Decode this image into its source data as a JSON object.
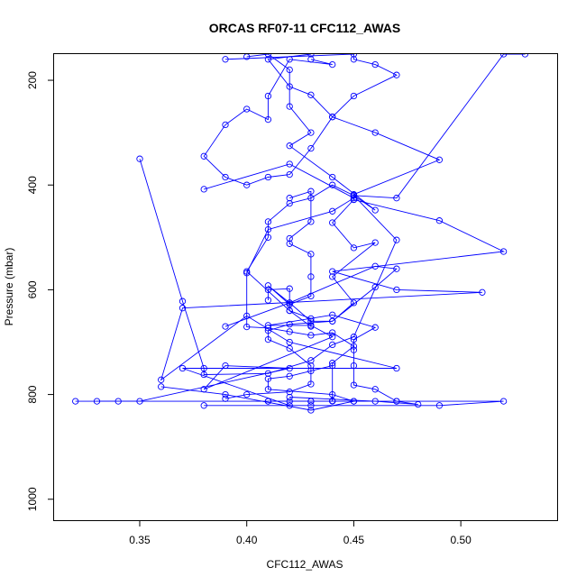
{
  "chart_data": {
    "type": "line",
    "title": "ORCAS RF07-11 CFC112_AWAS",
    "xlabel": "CFC112_AWAS",
    "ylabel": "Pressure (mbar)",
    "xlim": [
      0.31,
      0.545
    ],
    "ylim": [
      1040,
      150
    ],
    "y_reversed": true,
    "x_ticks": [
      0.35,
      0.4,
      0.45,
      0.5
    ],
    "x_tick_labels": [
      "0.35",
      "0.40",
      "0.45",
      "0.50"
    ],
    "y_ticks": [
      200,
      400,
      600,
      800,
      1000
    ],
    "y_tick_labels": [
      "200",
      "400",
      "600",
      "800",
      "1000"
    ],
    "series_color": "#0000ff",
    "marker": "open-circle",
    "series": [
      {
        "points": [
          [
            0.32,
            813
          ],
          [
            0.41,
            813
          ],
          [
            0.43,
            813
          ],
          [
            0.45,
            813
          ],
          [
            0.47,
            813
          ],
          [
            0.52,
            813
          ],
          [
            0.49,
            821
          ],
          [
            0.43,
            821
          ],
          [
            0.38,
            821
          ],
          [
            0.42,
            821
          ],
          [
            0.37,
            750
          ],
          [
            0.47,
            750
          ],
          [
            0.42,
            700
          ],
          [
            0.4,
            650
          ],
          [
            0.36,
            772
          ],
          [
            0.37,
            635
          ],
          [
            0.51,
            605
          ],
          [
            0.47,
            600
          ],
          [
            0.44,
            565
          ],
          [
            0.52,
            527
          ],
          [
            0.49,
            468
          ],
          [
            0.45,
            428
          ],
          [
            0.45,
            418
          ],
          [
            0.49,
            352
          ],
          [
            0.46,
            300
          ],
          [
            0.44,
            270
          ],
          [
            0.43,
            228
          ],
          [
            0.42,
            212
          ],
          [
            0.41,
            160
          ],
          [
            0.43,
            150
          ]
        ]
      },
      {
        "points": [
          [
            0.33,
            813
          ],
          [
            0.34,
            813
          ],
          [
            0.35,
            813
          ],
          [
            0.42,
            750
          ],
          [
            0.39,
            745
          ],
          [
            0.38,
            790
          ],
          [
            0.44,
            690
          ],
          [
            0.43,
            668
          ],
          [
            0.41,
            668
          ],
          [
            0.44,
            648
          ],
          [
            0.46,
            672
          ],
          [
            0.45,
            695
          ],
          [
            0.45,
            715
          ],
          [
            0.45,
            745
          ],
          [
            0.45,
            782
          ],
          [
            0.46,
            790
          ],
          [
            0.47,
            813
          ],
          [
            0.48,
            819
          ],
          [
            0.46,
            813
          ],
          [
            0.42,
            805
          ]
        ]
      },
      {
        "points": [
          [
            0.35,
            350
          ],
          [
            0.37,
            622
          ],
          [
            0.38,
            750
          ],
          [
            0.38,
            762
          ],
          [
            0.41,
            760
          ],
          [
            0.43,
            735
          ],
          [
            0.44,
            705
          ],
          [
            0.45,
            690
          ],
          [
            0.47,
            505
          ],
          [
            0.45,
            420
          ],
          [
            0.46,
            448
          ],
          [
            0.44,
            385
          ],
          [
            0.42,
            325
          ],
          [
            0.43,
            300
          ],
          [
            0.42,
            250
          ],
          [
            0.42,
            180
          ],
          [
            0.41,
            150
          ],
          [
            0.4,
            155
          ]
        ]
      },
      {
        "points": [
          [
            0.38,
            408
          ],
          [
            0.42,
            360
          ],
          [
            0.45,
            425
          ],
          [
            0.44,
            450
          ],
          [
            0.41,
            485
          ],
          [
            0.4,
            568
          ],
          [
            0.4,
            671
          ],
          [
            0.41,
            673
          ],
          [
            0.42,
            680
          ],
          [
            0.43,
            687
          ],
          [
            0.44,
            682
          ],
          [
            0.45,
            708
          ],
          [
            0.44,
            740
          ],
          [
            0.44,
            812
          ],
          [
            0.44,
            813
          ],
          [
            0.43,
            813
          ],
          [
            0.42,
            813
          ],
          [
            0.41,
            813
          ]
        ]
      },
      {
        "points": [
          [
            0.39,
            160
          ],
          [
            0.45,
            150
          ],
          [
            0.45,
            160
          ],
          [
            0.46,
            170
          ],
          [
            0.47,
            190
          ],
          [
            0.45,
            230
          ],
          [
            0.44,
            270
          ],
          [
            0.43,
            330
          ],
          [
            0.42,
            380
          ],
          [
            0.41,
            385
          ],
          [
            0.4,
            400
          ],
          [
            0.39,
            385
          ],
          [
            0.38,
            345
          ],
          [
            0.39,
            285
          ],
          [
            0.4,
            255
          ],
          [
            0.41,
            275
          ],
          [
            0.41,
            230
          ],
          [
            0.42,
            160
          ],
          [
            0.44,
            170
          ],
          [
            0.43,
            160
          ]
        ]
      },
      {
        "points": [
          [
            0.42,
            425
          ],
          [
            0.43,
            412
          ],
          [
            0.43,
            470
          ],
          [
            0.42,
            502
          ],
          [
            0.42,
            512
          ],
          [
            0.43,
            532
          ],
          [
            0.43,
            575
          ],
          [
            0.43,
            612
          ],
          [
            0.42,
            628
          ],
          [
            0.41,
            592
          ],
          [
            0.42,
            625
          ],
          [
            0.43,
            660
          ],
          [
            0.44,
            660
          ],
          [
            0.45,
            625
          ],
          [
            0.44,
            575
          ],
          [
            0.46,
            510
          ],
          [
            0.45,
            520
          ],
          [
            0.44,
            472
          ],
          [
            0.45,
            428
          ]
        ]
      },
      {
        "points": [
          [
            0.41,
            620
          ],
          [
            0.41,
            600
          ],
          [
            0.42,
            598
          ],
          [
            0.42,
            640
          ],
          [
            0.43,
            670
          ],
          [
            0.43,
            655
          ],
          [
            0.42,
            640
          ],
          [
            0.4,
            565
          ],
          [
            0.41,
            500
          ],
          [
            0.41,
            470
          ],
          [
            0.42,
            435
          ],
          [
            0.43,
            425
          ],
          [
            0.44,
            400
          ],
          [
            0.45,
            420
          ],
          [
            0.47,
            425
          ],
          [
            0.52,
            150
          ],
          [
            0.53,
            150
          ]
        ]
      },
      {
        "points": [
          [
            0.39,
            670
          ],
          [
            0.42,
            625
          ],
          [
            0.46,
            555
          ],
          [
            0.47,
            560
          ],
          [
            0.46,
            595
          ],
          [
            0.44,
            660
          ],
          [
            0.42,
            666
          ],
          [
            0.41,
            678
          ],
          [
            0.41,
            695
          ],
          [
            0.42,
            712
          ],
          [
            0.43,
            745
          ],
          [
            0.43,
            780
          ],
          [
            0.42,
            795
          ],
          [
            0.4,
            800
          ],
          [
            0.39,
            808
          ]
        ]
      },
      {
        "points": [
          [
            0.36,
            785
          ],
          [
            0.39,
            800
          ],
          [
            0.43,
            830
          ],
          [
            0.45,
            813
          ],
          [
            0.44,
            800
          ],
          [
            0.41,
            790
          ],
          [
            0.41,
            770
          ],
          [
            0.42,
            765
          ],
          [
            0.43,
            755
          ],
          [
            0.44,
            745
          ]
        ]
      }
    ]
  }
}
